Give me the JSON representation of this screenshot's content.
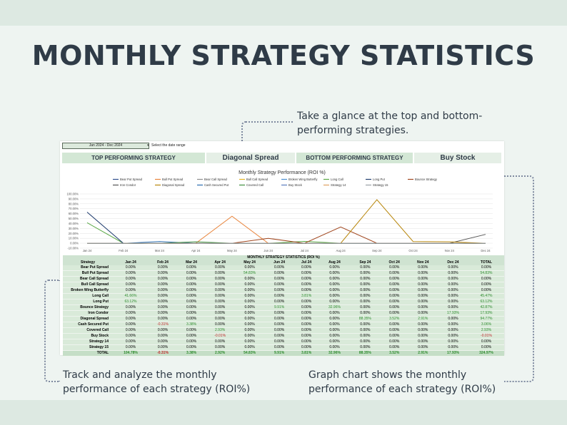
{
  "title": "MONTHLY STRATEGY STATISTICS",
  "captions": {
    "top": "Take a glance at the top and bottom-performing strategies.",
    "left": "Track and analyze the monthly performance of each strategy (ROI%)",
    "right": "Graph chart shows the monthly performance of each strategy (ROI%)"
  },
  "sheet": {
    "date_range": "Jan 2024 - Dec 2024",
    "date_hint": "Select the date range",
    "top_label": "TOP PERFORMING STRATEGY",
    "top_value": "Diagonal Spread",
    "bottom_label": "BOTTOM PERFORMING STRATEGY",
    "bottom_value": "Buy Stock",
    "table_title": "MONTHLY STRATEGY STATISTICS (ROI %)",
    "columns": [
      "Strategy",
      "Jan 24",
      "Feb 24",
      "Mar 24",
      "Apr 24",
      "May 24",
      "Jun 24",
      "Jul 24",
      "Aug 24",
      "Sep 24",
      "Oct 24",
      "Nov 24",
      "Dec 24",
      "TOTAL"
    ],
    "rows": [
      [
        "Bear Put Spread",
        "0.00%",
        "0.00%",
        "0.00%",
        "0.00%",
        "0.00%",
        "0.00%",
        "0.00%",
        "0.00%",
        "0.00%",
        "0.00%",
        "0.00%",
        "0.00%",
        "0.00%"
      ],
      [
        "Bull Put Spread",
        "0.00%",
        "0.00%",
        "0.00%",
        "0.00%",
        "54.83%",
        "0.00%",
        "0.00%",
        "0.00%",
        "0.00%",
        "0.00%",
        "0.00%",
        "0.00%",
        "54.83%"
      ],
      [
        "Bear Call Spread",
        "0.00%",
        "0.00%",
        "0.00%",
        "0.00%",
        "0.00%",
        "0.00%",
        "0.00%",
        "0.00%",
        "0.00%",
        "0.00%",
        "0.00%",
        "0.00%",
        "0.00%"
      ],
      [
        "Bull Call Spread",
        "0.00%",
        "0.00%",
        "0.00%",
        "0.00%",
        "0.00%",
        "0.00%",
        "0.00%",
        "0.00%",
        "0.00%",
        "0.00%",
        "0.00%",
        "0.00%",
        "0.00%"
      ],
      [
        "Broken Wing Butterfly",
        "0.00%",
        "0.00%",
        "0.00%",
        "0.00%",
        "0.00%",
        "0.00%",
        "0.00%",
        "0.00%",
        "0.00%",
        "0.00%",
        "0.00%",
        "0.00%",
        "0.00%"
      ],
      [
        "Long Call",
        "41.66%",
        "0.00%",
        "0.00%",
        "0.00%",
        "0.00%",
        "0.00%",
        "3.81%",
        "0.00%",
        "0.00%",
        "0.00%",
        "0.00%",
        "0.00%",
        "45.47%"
      ],
      [
        "Long Put",
        "63.12%",
        "0.00%",
        "0.00%",
        "0.00%",
        "0.00%",
        "0.00%",
        "0.00%",
        "0.00%",
        "0.00%",
        "0.00%",
        "0.00%",
        "0.00%",
        "63.12%"
      ],
      [
        "Bounce Strategy",
        "0.00%",
        "0.00%",
        "0.00%",
        "0.00%",
        "0.00%",
        "9.91%",
        "0.00%",
        "32.96%",
        "0.00%",
        "0.00%",
        "0.00%",
        "0.00%",
        "42.87%"
      ],
      [
        "Iron Condor",
        "0.00%",
        "0.00%",
        "0.00%",
        "0.00%",
        "0.00%",
        "0.00%",
        "0.00%",
        "0.00%",
        "0.00%",
        "0.00%",
        "0.00%",
        "17.93%",
        "17.93%"
      ],
      [
        "Diagonal Spread",
        "0.00%",
        "0.00%",
        "0.00%",
        "0.00%",
        "0.00%",
        "0.00%",
        "0.00%",
        "0.00%",
        "88.35%",
        "3.52%",
        "2.91%",
        "0.00%",
        "94.77%"
      ],
      [
        "Cash Secured Put",
        "0.00%",
        "-0.31%",
        "3.38%",
        "0.00%",
        "0.00%",
        "0.00%",
        "0.00%",
        "0.00%",
        "0.00%",
        "0.00%",
        "0.00%",
        "0.00%",
        "3.06%"
      ],
      [
        "Covered Call",
        "0.00%",
        "0.00%",
        "0.00%",
        "2.93%",
        "0.00%",
        "0.00%",
        "0.00%",
        "0.00%",
        "0.00%",
        "0.00%",
        "0.00%",
        "0.00%",
        "2.93%"
      ],
      [
        "Buy Stock",
        "0.00%",
        "0.00%",
        "0.00%",
        "-0.01%",
        "0.00%",
        "0.00%",
        "0.00%",
        "0.00%",
        "0.00%",
        "0.00%",
        "0.00%",
        "0.00%",
        "-0.01%"
      ],
      [
        "Strategy 14",
        "0.00%",
        "0.00%",
        "0.00%",
        "0.00%",
        "0.00%",
        "0.00%",
        "0.00%",
        "0.00%",
        "0.00%",
        "0.00%",
        "0.00%",
        "0.00%",
        "0.00%"
      ],
      [
        "Strategy 15",
        "0.00%",
        "0.00%",
        "0.00%",
        "0.00%",
        "0.00%",
        "0.00%",
        "0.00%",
        "0.00%",
        "0.00%",
        "0.00%",
        "0.00%",
        "0.00%",
        "0.00%"
      ]
    ],
    "total_row": [
      "TOTAL",
      "104.78%",
      "-0.31%",
      "3.38%",
      "2.92%",
      "54.83%",
      "9.91%",
      "3.81%",
      "32.96%",
      "88.35%",
      "3.52%",
      "2.91%",
      "17.93%",
      "324.97%"
    ]
  },
  "chart_data": {
    "type": "line",
    "title": "Monthly Strategy Performance (ROI %)",
    "categories": [
      "Jan 24",
      "Feb 24",
      "Mar 24",
      "Apr 24",
      "May 24",
      "Jun 24",
      "Jul 24",
      "Aug 24",
      "Sep 24",
      "Oct 24",
      "Nov 24",
      "Dec 24"
    ],
    "y_ticks": [
      "100.00%",
      "90.00%",
      "80.00%",
      "70.00%",
      "60.00%",
      "50.00%",
      "40.00%",
      "30.00%",
      "20.00%",
      "10.00%",
      "0.00%",
      "-10.00%"
    ],
    "ylim": [
      -10,
      100
    ],
    "grid": true,
    "legend_position": "top",
    "series": [
      {
        "name": "Bear Put Spread",
        "color": "#2e4d8c",
        "values": [
          0,
          0,
          0,
          0,
          0,
          0,
          0,
          0,
          0,
          0,
          0,
          0
        ]
      },
      {
        "name": "Bull Put Spread",
        "color": "#e8833a",
        "values": [
          0,
          0,
          0,
          0,
          54.83,
          0,
          0,
          0,
          0,
          0,
          0,
          0
        ]
      },
      {
        "name": "Bear Call Spread",
        "color": "#8c8c8c",
        "values": [
          0,
          0,
          0,
          0,
          0,
          0,
          0,
          0,
          0,
          0,
          0,
          0
        ]
      },
      {
        "name": "Bull Call Spread",
        "color": "#e6b422",
        "values": [
          0,
          0,
          0,
          0,
          0,
          0,
          0,
          0,
          0,
          0,
          0,
          0
        ]
      },
      {
        "name": "Broken Wing Butterfly",
        "color": "#4a8fd1",
        "values": [
          0,
          0,
          0,
          0,
          0,
          0,
          0,
          0,
          0,
          0,
          0,
          0
        ]
      },
      {
        "name": "Long Call",
        "color": "#5aa846",
        "values": [
          41.66,
          0,
          0,
          0,
          0,
          0,
          3.81,
          0,
          0,
          0,
          0,
          0
        ]
      },
      {
        "name": "Long Put",
        "color": "#1f3c6e",
        "values": [
          63.12,
          0,
          0,
          0,
          0,
          0,
          0,
          0,
          0,
          0,
          0,
          0
        ]
      },
      {
        "name": "Bounce Strategy",
        "color": "#a0461e",
        "values": [
          0,
          0,
          0,
          0,
          0,
          9.91,
          0,
          32.96,
          0,
          0,
          0,
          0
        ]
      },
      {
        "name": "Iron Condor",
        "color": "#555555",
        "values": [
          0,
          0,
          0,
          0,
          0,
          0,
          0,
          0,
          0,
          0,
          0,
          17.93
        ]
      },
      {
        "name": "Diagonal Spread",
        "color": "#b8860b",
        "values": [
          0,
          0,
          0,
          0,
          0,
          0,
          0,
          0,
          88.35,
          3.52,
          2.91,
          0
        ]
      },
      {
        "name": "Cash Secured Put",
        "color": "#2a6db0",
        "values": [
          0,
          -0.31,
          3.38,
          0,
          0,
          0,
          0,
          0,
          0,
          0,
          0,
          0
        ]
      },
      {
        "name": "Covered Call",
        "color": "#3f8f3f",
        "values": [
          0,
          0,
          0,
          2.93,
          0,
          0,
          0,
          0,
          0,
          0,
          0,
          0
        ]
      },
      {
        "name": "Buy Stock",
        "color": "#5b7bbf",
        "values": [
          0,
          0,
          0,
          -0.01,
          0,
          0,
          0,
          0,
          0,
          0,
          0,
          0
        ]
      },
      {
        "name": "Strategy 14",
        "color": "#e0a060",
        "values": [
          0,
          0,
          0,
          0,
          0,
          0,
          0,
          0,
          0,
          0,
          0,
          0
        ]
      },
      {
        "name": "Strategy 15",
        "color": "#9aa0a6",
        "values": [
          0,
          0,
          0,
          0,
          0,
          0,
          0,
          0,
          0,
          0,
          0,
          0
        ]
      }
    ]
  }
}
